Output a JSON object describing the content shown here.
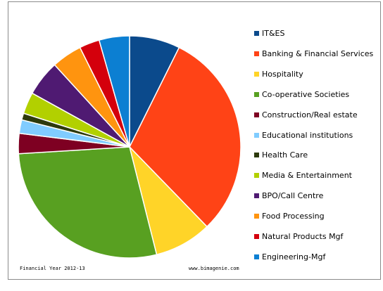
{
  "chart_data": {
    "type": "pie",
    "title": "",
    "legend_position": "right",
    "slices": [
      {
        "label": "IT&ES",
        "value": 7.5,
        "color": "#0b4a8c"
      },
      {
        "label": "Banking & Financial Services",
        "value": 31.0,
        "color": "#ff4316"
      },
      {
        "label": "Hospitality",
        "value": 8.5,
        "color": "#ffd428"
      },
      {
        "label": "Co-operative Societies",
        "value": 28.5,
        "color": "#58a021"
      },
      {
        "label": "Construction/Real estate",
        "value": 3.0,
        "color": "#7e0022"
      },
      {
        "label": "Educational institutions",
        "value": 2.0,
        "color": "#80ccff"
      },
      {
        "label": "Health Care",
        "value": 1.0,
        "color": "#2d3a0c"
      },
      {
        "label": "Media & Entertainment",
        "value": 3.2,
        "color": "#b2d000"
      },
      {
        "label": "BPO/Call Centre",
        "value": 5.3,
        "color": "#4f1a72"
      },
      {
        "label": "Food Processing",
        "value": 4.5,
        "color": "#ff940f"
      },
      {
        "label": "Natural Products Mgf",
        "value": 3.0,
        "color": "#d4000c"
      },
      {
        "label": "Engineering-Mgf",
        "value": 4.5,
        "color": "#0c7fd2"
      }
    ]
  },
  "footer": {
    "left": "Financial Year 2012-13",
    "right": "www.bimagenie.com"
  }
}
